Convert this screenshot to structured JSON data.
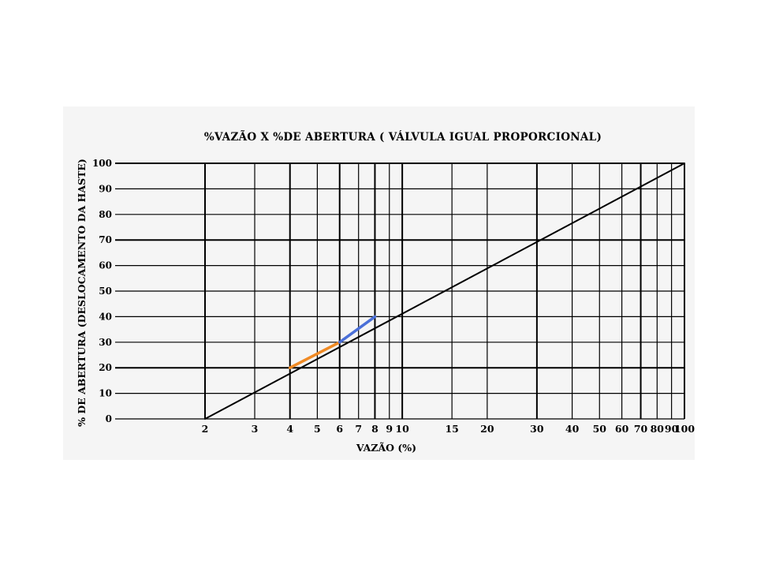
{
  "chart_data": {
    "type": "line",
    "title": "%VAZÃO X %DE ABERTURA ( VÁLVULA IGUAL PROPORCIONAL)",
    "xlabel": "VAZÃO (%)",
    "ylabel": "% DE ABERTURA (DESLOCAMENTO DA HASTE)",
    "x_scale": "log",
    "xlim": [
      2,
      100
    ],
    "ylim": [
      0,
      100
    ],
    "x_ticks": [
      2,
      3,
      4,
      5,
      6,
      7,
      8,
      9,
      10,
      15,
      20,
      30,
      40,
      50,
      60,
      70,
      80,
      90,
      100
    ],
    "x_tick_labels": [
      "2",
      "3",
      "4",
      "5",
      "6",
      "7",
      "8",
      "9",
      "10",
      "15",
      "20",
      "30",
      "40",
      "50",
      "60",
      "70",
      "80",
      "90",
      "100"
    ],
    "y_ticks": [
      0,
      10,
      20,
      30,
      40,
      50,
      60,
      70,
      80,
      90,
      100
    ],
    "y_tick_labels": [
      "0",
      "10",
      "20",
      "30",
      "40",
      "50",
      "60",
      "70",
      "80",
      "90",
      "100"
    ],
    "grid": true,
    "series": [
      {
        "color": "#000000",
        "x": [
          2,
          100
        ],
        "y": [
          0,
          100
        ]
      },
      {
        "color": "#f08a24",
        "x": [
          4,
          6
        ],
        "y": [
          20,
          30
        ]
      },
      {
        "color": "#4a6fd8",
        "x": [
          6,
          8
        ],
        "y": [
          30,
          40
        ]
      }
    ]
  }
}
